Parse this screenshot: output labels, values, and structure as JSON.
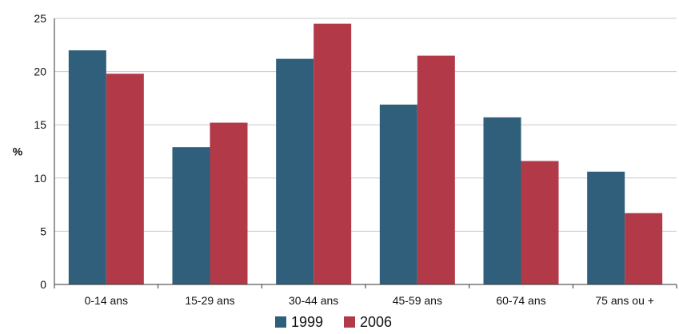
{
  "chart_data": {
    "type": "bar",
    "title": "",
    "xlabel": "",
    "ylabel": "%",
    "ylim": [
      0,
      25
    ],
    "yticks": [
      0,
      5,
      10,
      15,
      20,
      25
    ],
    "categories": [
      "0-14 ans",
      "15-29 ans",
      "30-44 ans",
      "45-59 ans",
      "60-74 ans",
      "75 ans ou +"
    ],
    "series": [
      {
        "name": "1999",
        "values": [
          22.0,
          12.9,
          21.2,
          16.9,
          15.7,
          10.6
        ]
      },
      {
        "name": "2006",
        "values": [
          19.8,
          15.2,
          24.5,
          21.5,
          11.6,
          6.7
        ]
      }
    ],
    "grid": true,
    "legend_position": "bottom",
    "colors": {
      "1999": "#2f5f7a",
      "2006": "#b23a48",
      "grid": "#c9c9c9",
      "axis": "#333333"
    }
  }
}
